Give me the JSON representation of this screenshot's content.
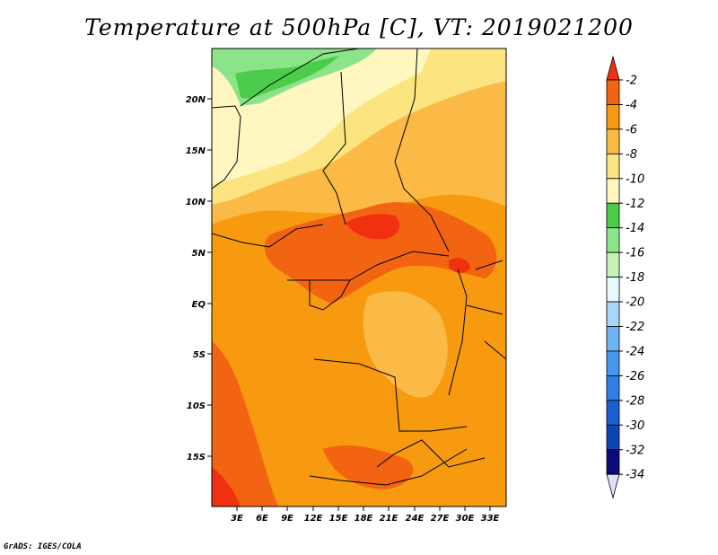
{
  "title": "Temperature at 500hPa [C], VT: 2019021200",
  "credit": "GrADS: IGES/COLA",
  "map": {
    "lat_labels": [
      "20N",
      "15N",
      "10N",
      "5N",
      "EQ",
      "5S",
      "10S",
      "15S"
    ],
    "lon_labels": [
      "3E",
      "6E",
      "9E",
      "12E",
      "15E",
      "18E",
      "21E",
      "24E",
      "27E",
      "30E",
      "33E"
    ]
  },
  "colorbar": {
    "labels": [
      "-2",
      "-4",
      "-6",
      "-8",
      "-10",
      "-12",
      "-14",
      "-16",
      "-18",
      "-20",
      "-22",
      "-24",
      "-26",
      "-28",
      "-30",
      "-32",
      "-34"
    ],
    "colors": [
      "#e0e0f8",
      "#0a0a78",
      "#0c46b4",
      "#1a5fd0",
      "#2f7fe6",
      "#4896ee",
      "#6eb4f4",
      "#a8d6f8",
      "#e8f8ff",
      "#c6f2b8",
      "#8ce48a",
      "#4ccc4a",
      "#fff6c0",
      "#fce480",
      "#fbba46",
      "#f79a10",
      "#f26412",
      "#f03010"
    ],
    "direction_note": ""
  }
}
